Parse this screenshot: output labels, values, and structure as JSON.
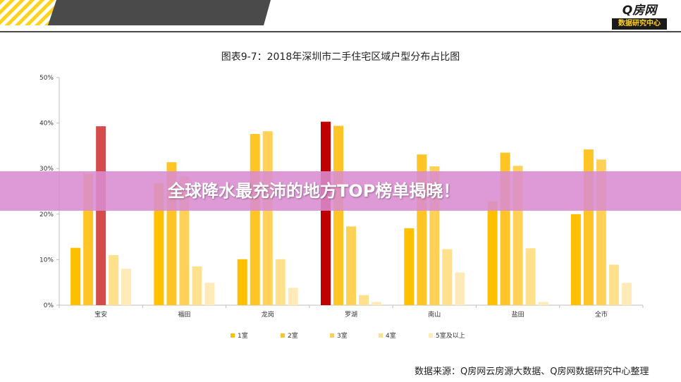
{
  "header": {
    "logo_text": "Q房网",
    "logo_subtext": "数据研究中心",
    "colors": {
      "dark": "#4a4a4a",
      "stripe": "#ffd21c",
      "logo_bg": "#1a1a1a"
    }
  },
  "overlay": {
    "headline": "全球降水最充沛的地方TOP榜单揭晓！"
  },
  "source": {
    "text": "数据来源：Q房网云房源大数据、Q房网数据研究中心整理"
  },
  "chart_data": {
    "type": "bar",
    "title": "图表9-7：2018年深圳市二手住宅区域户型分布占比图",
    "xlabel": "",
    "ylabel": "",
    "ylim": [
      0,
      50
    ],
    "yticks": [
      "0%",
      "10%",
      "20%",
      "30%",
      "40%",
      "50%"
    ],
    "grid": false,
    "legend_position": "bottom",
    "categories": [
      "宝安",
      "福田",
      "龙岗",
      "罗湖",
      "南山",
      "盐田",
      "全市"
    ],
    "series": [
      {
        "name": "1室",
        "color": "#ffc000",
        "values": [
          12.6,
          26.8,
          10.1,
          40.3,
          16.9,
          22.8,
          20.0
        ]
      },
      {
        "name": "2室",
        "color": "#ffc526",
        "values": [
          28.9,
          31.4,
          37.6,
          39.4,
          33.1,
          33.5,
          34.2
        ]
      },
      {
        "name": "3室",
        "color": "#ffd257",
        "values": [
          39.3,
          28.3,
          38.2,
          17.3,
          30.5,
          30.6,
          32.0
        ]
      },
      {
        "name": "4室",
        "color": "#ffe08c",
        "values": [
          11.0,
          8.5,
          10.1,
          2.2,
          12.3,
          12.5,
          8.9
        ]
      },
      {
        "name": "5室及以上",
        "color": "#ffeab8",
        "values": [
          8.0,
          4.9,
          3.8,
          0.7,
          7.2,
          0.7,
          4.9
        ]
      }
    ],
    "highlights": [
      {
        "category": "宝安",
        "series": "3室",
        "color": "#d44b4b"
      },
      {
        "category": "罗湖",
        "series": "1室",
        "color": "#c00000"
      }
    ]
  }
}
